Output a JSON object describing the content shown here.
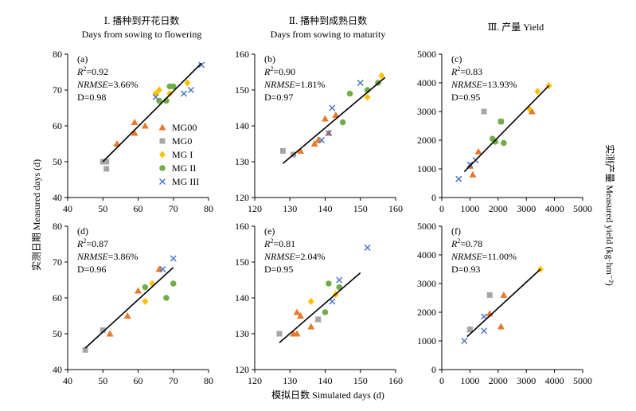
{
  "col_titles": [
    {
      "zh": "Ⅰ. 播种到开花日数",
      "en": "Days from sowing to flowering"
    },
    {
      "zh": "Ⅱ. 播种到成熟日数",
      "en": "Days from sowing to maturity"
    },
    {
      "zh": "Ⅲ. 产量 Yield",
      "en": ""
    }
  ],
  "xlabel": "模拟日数 Simulated days (d)",
  "ylabel_left": "实测日期 Measured days (d)",
  "ylabel_right": "实测产量 Measured yield (kg·hm⁻²)",
  "colors": {
    "MG00": "#e8792b",
    "MG0": "#a6a6a6",
    "MGI": "#ffc000",
    "MGII": "#70ad47",
    "MGIII": "#4472c4",
    "line": "#000000"
  },
  "legend": [
    {
      "key": "MG00",
      "label": "MG00",
      "shape": "triangle"
    },
    {
      "key": "MG0",
      "label": "MG0",
      "shape": "square"
    },
    {
      "key": "MGI",
      "label": "MG I",
      "shape": "diamond"
    },
    {
      "key": "MGII",
      "label": "MG II",
      "shape": "circle"
    },
    {
      "key": "MGIII",
      "label": "MG III",
      "shape": "cross"
    }
  ],
  "chart_data": [
    {
      "panel": "(a)",
      "type": "scatter",
      "xlim": [
        40,
        80
      ],
      "xticks": [
        40,
        50,
        60,
        70,
        80
      ],
      "ylim": [
        40,
        80
      ],
      "yticks": [
        40,
        50,
        60,
        70,
        80
      ],
      "stats": {
        "r2": "=0.92",
        "nrmse": "=3.66%",
        "d": "D=0.98"
      },
      "fit": [
        [
          50,
          50
        ],
        [
          78,
          77.5
        ]
      ],
      "series": [
        {
          "key": "MG00",
          "points": [
            [
              54,
              55
            ],
            [
              59,
              58
            ],
            [
              59,
              61
            ],
            [
              62,
              60
            ]
          ]
        },
        {
          "key": "MG0",
          "points": [
            [
              50,
              50
            ],
            [
              51,
              48
            ],
            [
              51,
              50
            ]
          ]
        },
        {
          "key": "MGI",
          "points": [
            [
              65,
              69
            ],
            [
              66,
              70
            ],
            [
              69,
              69
            ],
            [
              74,
              72
            ]
          ]
        },
        {
          "key": "MGII",
          "points": [
            [
              66,
              67
            ],
            [
              68,
              67
            ],
            [
              69,
              71
            ],
            [
              70,
              71
            ]
          ]
        },
        {
          "key": "MGIII",
          "points": [
            [
              65,
              68
            ],
            [
              73,
              69
            ],
            [
              75,
              70
            ],
            [
              78,
              77
            ]
          ]
        }
      ]
    },
    {
      "panel": "(b)",
      "type": "scatter",
      "xlim": [
        120,
        160
      ],
      "xticks": [
        120,
        130,
        140,
        150,
        160
      ],
      "ylim": [
        120,
        160
      ],
      "yticks": [
        120,
        130,
        140,
        150,
        160
      ],
      "stats": {
        "r2": "=0.90",
        "nrmse": "=1.81%",
        "d": "D=0.97"
      },
      "fit": [
        [
          128,
          129.5
        ],
        [
          157,
          153.5
        ]
      ],
      "series": [
        {
          "key": "MG00",
          "points": [
            [
              133,
              133
            ],
            [
              137,
              135
            ],
            [
              138,
              136
            ],
            [
              140,
              142
            ],
            [
              141,
              138
            ],
            [
              143,
              143
            ]
          ]
        },
        {
          "key": "MG0",
          "points": [
            [
              128,
              133
            ],
            [
              131,
              132
            ]
          ]
        },
        {
          "key": "MGI",
          "points": [
            [
              152,
              148
            ],
            [
              156,
              154
            ]
          ]
        },
        {
          "key": "MGII",
          "points": [
            [
              145,
              141
            ],
            [
              147,
              149
            ],
            [
              152,
              150
            ],
            [
              155,
              152
            ]
          ]
        },
        {
          "key": "MGIII",
          "points": [
            [
              139,
              136
            ],
            [
              141,
              138
            ],
            [
              142,
              145
            ],
            [
              150,
              152
            ]
          ]
        }
      ]
    },
    {
      "panel": "(c)",
      "type": "scatter",
      "xlim": [
        0,
        5000
      ],
      "xticks": [
        0,
        1000,
        2000,
        3000,
        4000,
        5000
      ],
      "ylim": [
        0,
        5000
      ],
      "yticks": [
        0,
        1000,
        2000,
        3000,
        4000,
        5000
      ],
      "stats": {
        "r2": "=0.83",
        "nrmse": "=13.93%",
        "d": "D=0.95"
      },
      "fit": [
        [
          800,
          900
        ],
        [
          3800,
          3900
        ]
      ],
      "series": [
        {
          "key": "MG00",
          "points": [
            [
              1000,
              1100
            ],
            [
              1100,
              800
            ],
            [
              1300,
              1600
            ],
            [
              3200,
              3000
            ]
          ]
        },
        {
          "key": "MG0",
          "points": [
            [
              1500,
              3000
            ],
            [
              2100,
              2650
            ]
          ]
        },
        {
          "key": "MGI",
          "points": [
            [
              3100,
              3100
            ],
            [
              3400,
              3700
            ],
            [
              3800,
              3900
            ]
          ]
        },
        {
          "key": "MGII",
          "points": [
            [
              1800,
              2050
            ],
            [
              1900,
              1950
            ],
            [
              2100,
              2650
            ],
            [
              2200,
              1900
            ]
          ]
        },
        {
          "key": "MGIII",
          "points": [
            [
              600,
              650
            ],
            [
              1000,
              1150
            ],
            [
              1200,
              1300
            ]
          ]
        }
      ]
    },
    {
      "panel": "(d)",
      "type": "scatter",
      "xlim": [
        40,
        80
      ],
      "xticks": [
        40,
        50,
        60,
        70,
        80
      ],
      "ylim": [
        40,
        80
      ],
      "yticks": [
        40,
        50,
        60,
        70,
        80
      ],
      "stats": {
        "r2": "=0.87",
        "nrmse": "=3.86%",
        "d": "D=0.96"
      },
      "fit": [
        [
          45,
          46
        ],
        [
          70,
          68.5
        ]
      ],
      "series": [
        {
          "key": "MG00",
          "points": [
            [
              52,
              50
            ],
            [
              57,
              55
            ],
            [
              60,
              62
            ],
            [
              66,
              68
            ]
          ]
        },
        {
          "key": "MG0",
          "points": [
            [
              45,
              45.5
            ],
            [
              50,
              51
            ]
          ]
        },
        {
          "key": "MGI",
          "points": [
            [
              62,
              59
            ],
            [
              64,
              64
            ]
          ]
        },
        {
          "key": "MGII",
          "points": [
            [
              62,
              63
            ],
            [
              68,
              60
            ],
            [
              70,
              64
            ]
          ]
        },
        {
          "key": "MGIII",
          "points": [
            [
              67,
              68
            ],
            [
              70,
              71
            ]
          ]
        }
      ]
    },
    {
      "panel": "(e)",
      "type": "scatter",
      "xlim": [
        120,
        160
      ],
      "xticks": [
        120,
        130,
        140,
        150,
        160
      ],
      "ylim": [
        120,
        160
      ],
      "yticks": [
        120,
        130,
        140,
        150,
        160
      ],
      "stats": {
        "r2": "=0.81",
        "nrmse": "=2.04%",
        "d": "D=0.95"
      },
      "fit": [
        [
          127,
          127.5
        ],
        [
          150,
          147
        ]
      ],
      "series": [
        {
          "key": "MG00",
          "points": [
            [
              131,
              130
            ],
            [
              132,
              130
            ],
            [
              132,
              136
            ],
            [
              133,
              135
            ],
            [
              136,
              132
            ],
            [
              138,
              134
            ]
          ]
        },
        {
          "key": "MG0",
          "points": [
            [
              127,
              130
            ],
            [
              138,
              134
            ]
          ]
        },
        {
          "key": "MGI",
          "points": [
            [
              136,
              139
            ],
            [
              143,
              141
            ]
          ]
        },
        {
          "key": "MGII",
          "points": [
            [
              140,
              136
            ],
            [
              141,
              144
            ],
            [
              144,
              143
            ]
          ]
        },
        {
          "key": "MGIII",
          "points": [
            [
              142,
              139
            ],
            [
              144,
              145
            ],
            [
              152,
              154
            ]
          ]
        }
      ]
    },
    {
      "panel": "(f)",
      "type": "scatter",
      "xlim": [
        0,
        5000
      ],
      "xticks": [
        0,
        1000,
        2000,
        3000,
        4000,
        5000
      ],
      "ylim": [
        0,
        5000
      ],
      "yticks": [
        0,
        1000,
        2000,
        3000,
        4000,
        5000
      ],
      "stats": {
        "r2": "=0.78",
        "nrmse": "=11.00%",
        "d": "D=0.93"
      },
      "fit": [
        [
          900,
          1150
        ],
        [
          3500,
          3500
        ]
      ],
      "series": [
        {
          "key": "MG00",
          "points": [
            [
              1000,
              1400
            ],
            [
              1700,
              1950
            ],
            [
              2100,
              1500
            ],
            [
              2200,
              2600
            ]
          ]
        },
        {
          "key": "MG0",
          "points": [
            [
              1000,
              1400
            ],
            [
              1700,
              2600
            ]
          ]
        },
        {
          "key": "MGI",
          "points": [
            [
              3500,
              3500
            ]
          ]
        },
        {
          "key": "MGII",
          "points": []
        },
        {
          "key": "MGIII",
          "points": [
            [
              800,
              1000
            ],
            [
              1500,
              1850
            ],
            [
              1500,
              1350
            ]
          ]
        }
      ]
    }
  ]
}
